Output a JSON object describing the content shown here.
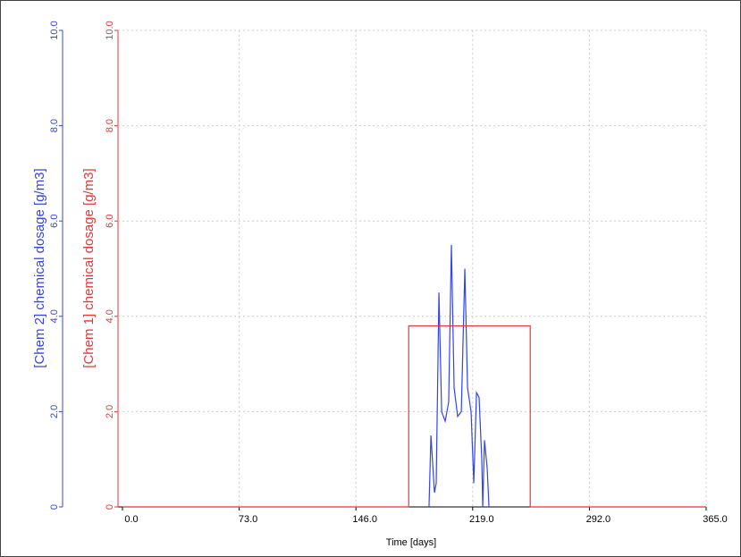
{
  "chart_data": {
    "type": "line",
    "xlabel": "Time [days]",
    "ylabel": "[Chem  2]  chemical dosage [g/m3]",
    "y2label": "[Chem  1]  chemical dosage [g/m3]",
    "xlim": [
      0,
      365
    ],
    "xticks": [
      {
        "value": 0,
        "label": "0.0"
      },
      {
        "value": 73,
        "label": "73.0"
      },
      {
        "value": 146,
        "label": "146.0"
      },
      {
        "value": 219,
        "label": "219.0"
      },
      {
        "value": 292,
        "label": "292.0"
      },
      {
        "value": 365,
        "label": "365.0"
      }
    ],
    "ylim": [
      0,
      10
    ],
    "yticks": [
      0,
      {
        "value": 2,
        "label": "2.0"
      },
      {
        "value": 4,
        "label": "4.0"
      },
      {
        "value": 6,
        "label": "6.0"
      },
      {
        "value": 8,
        "label": "8.0"
      },
      {
        "value": 10,
        "label": "10.0"
      }
    ],
    "y2lim": [
      0,
      10
    ],
    "y2ticks": [
      0,
      {
        "value": 2,
        "label": "2.0"
      },
      {
        "value": 4,
        "label": "4.0"
      },
      {
        "value": 6,
        "label": "6.0"
      },
      {
        "value": 8,
        "label": "8.0"
      },
      {
        "value": 10,
        "label": "10.0"
      }
    ],
    "grid": true,
    "series": [
      {
        "name": "Chem 2",
        "color": "#3344ee",
        "axis": "y",
        "x": [
          191.7,
          192.9,
          195.1,
          196.2,
          197.9,
          199.6,
          201.8,
          204.0,
          205.7,
          207.4,
          209.6,
          211.9,
          214.1,
          215.8,
          218.0,
          219.7,
          221.4,
          223.0,
          224.7,
          225.3,
          226.4,
          228.1,
          229.2
        ],
        "values": [
          0,
          1.5,
          0.3,
          0.5,
          4.5,
          2.0,
          1.8,
          2.2,
          5.5,
          2.5,
          1.9,
          2.0,
          5.0,
          2.5,
          2.0,
          0.5,
          2.4,
          2.3,
          1.0,
          0,
          1.4,
          0.8,
          0
        ]
      },
      {
        "name": "Chem 1",
        "color": "#ee3333",
        "axis": "y2",
        "x": [
          0,
          179,
          179,
          255,
          255,
          365
        ],
        "values": [
          0,
          0,
          3.8,
          3.8,
          0,
          0
        ]
      }
    ]
  }
}
